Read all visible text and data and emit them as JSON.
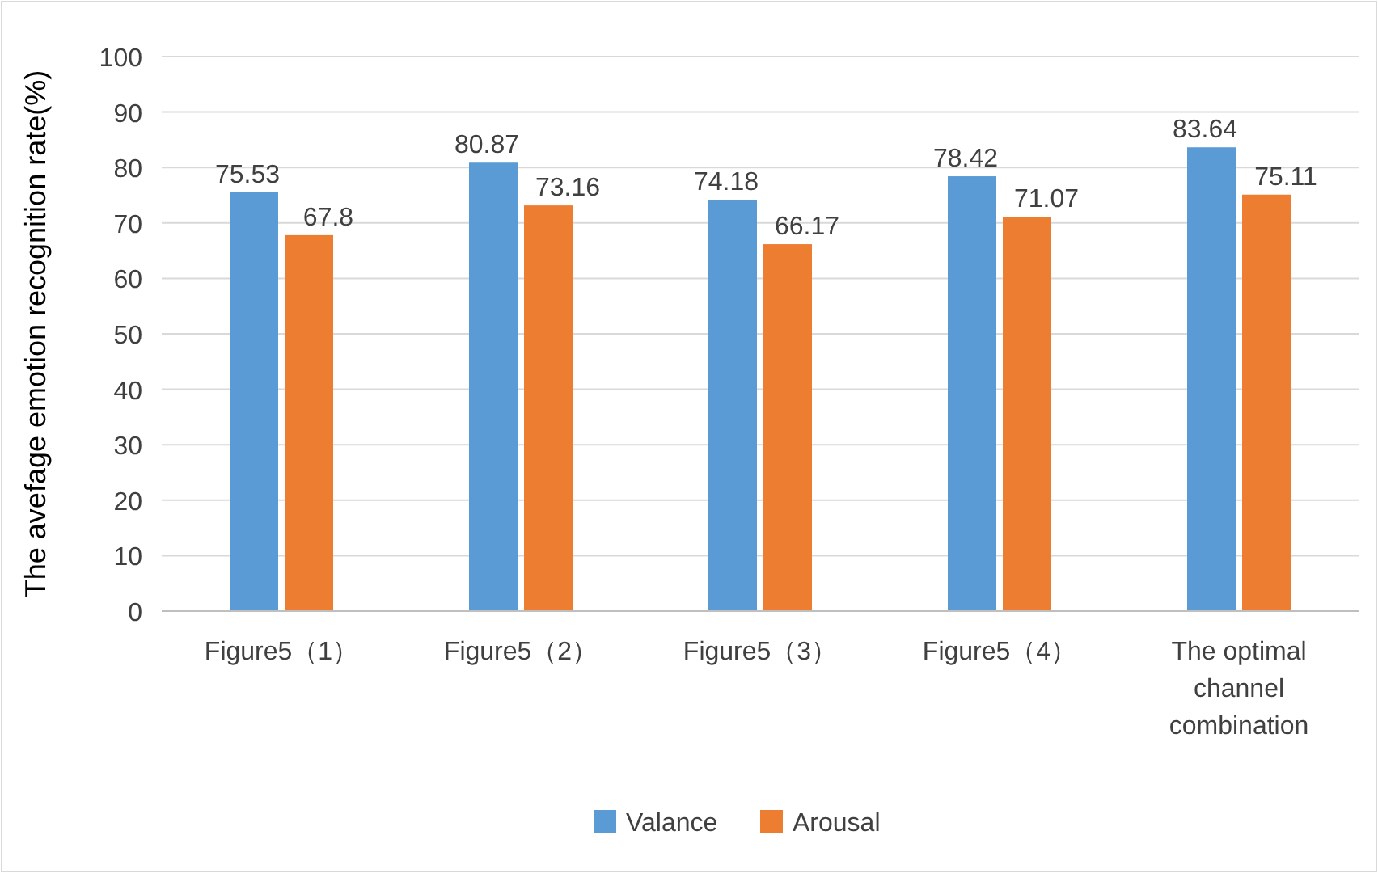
{
  "chart_data": {
    "type": "bar",
    "ylabel": "The avefage emotion recognition rate(%)",
    "categories": [
      "Figure5（1）",
      "Figure5（2）",
      "Figure5（3）",
      "Figure5（4）",
      "The optimal channel combination"
    ],
    "series": [
      {
        "name": "Valance",
        "color": "#5b9bd5",
        "values": [
          75.53,
          80.87,
          74.18,
          78.42,
          83.64
        ]
      },
      {
        "name": "Arousal",
        "color": "#ed7d31",
        "values": [
          67.8,
          73.16,
          66.17,
          71.07,
          75.11
        ]
      }
    ],
    "ylim": [
      0,
      100
    ],
    "yticks": [
      0,
      10,
      20,
      30,
      40,
      50,
      60,
      70,
      80,
      90,
      100
    ],
    "grid": "y",
    "legend": "bottom",
    "data_labels": true
  }
}
